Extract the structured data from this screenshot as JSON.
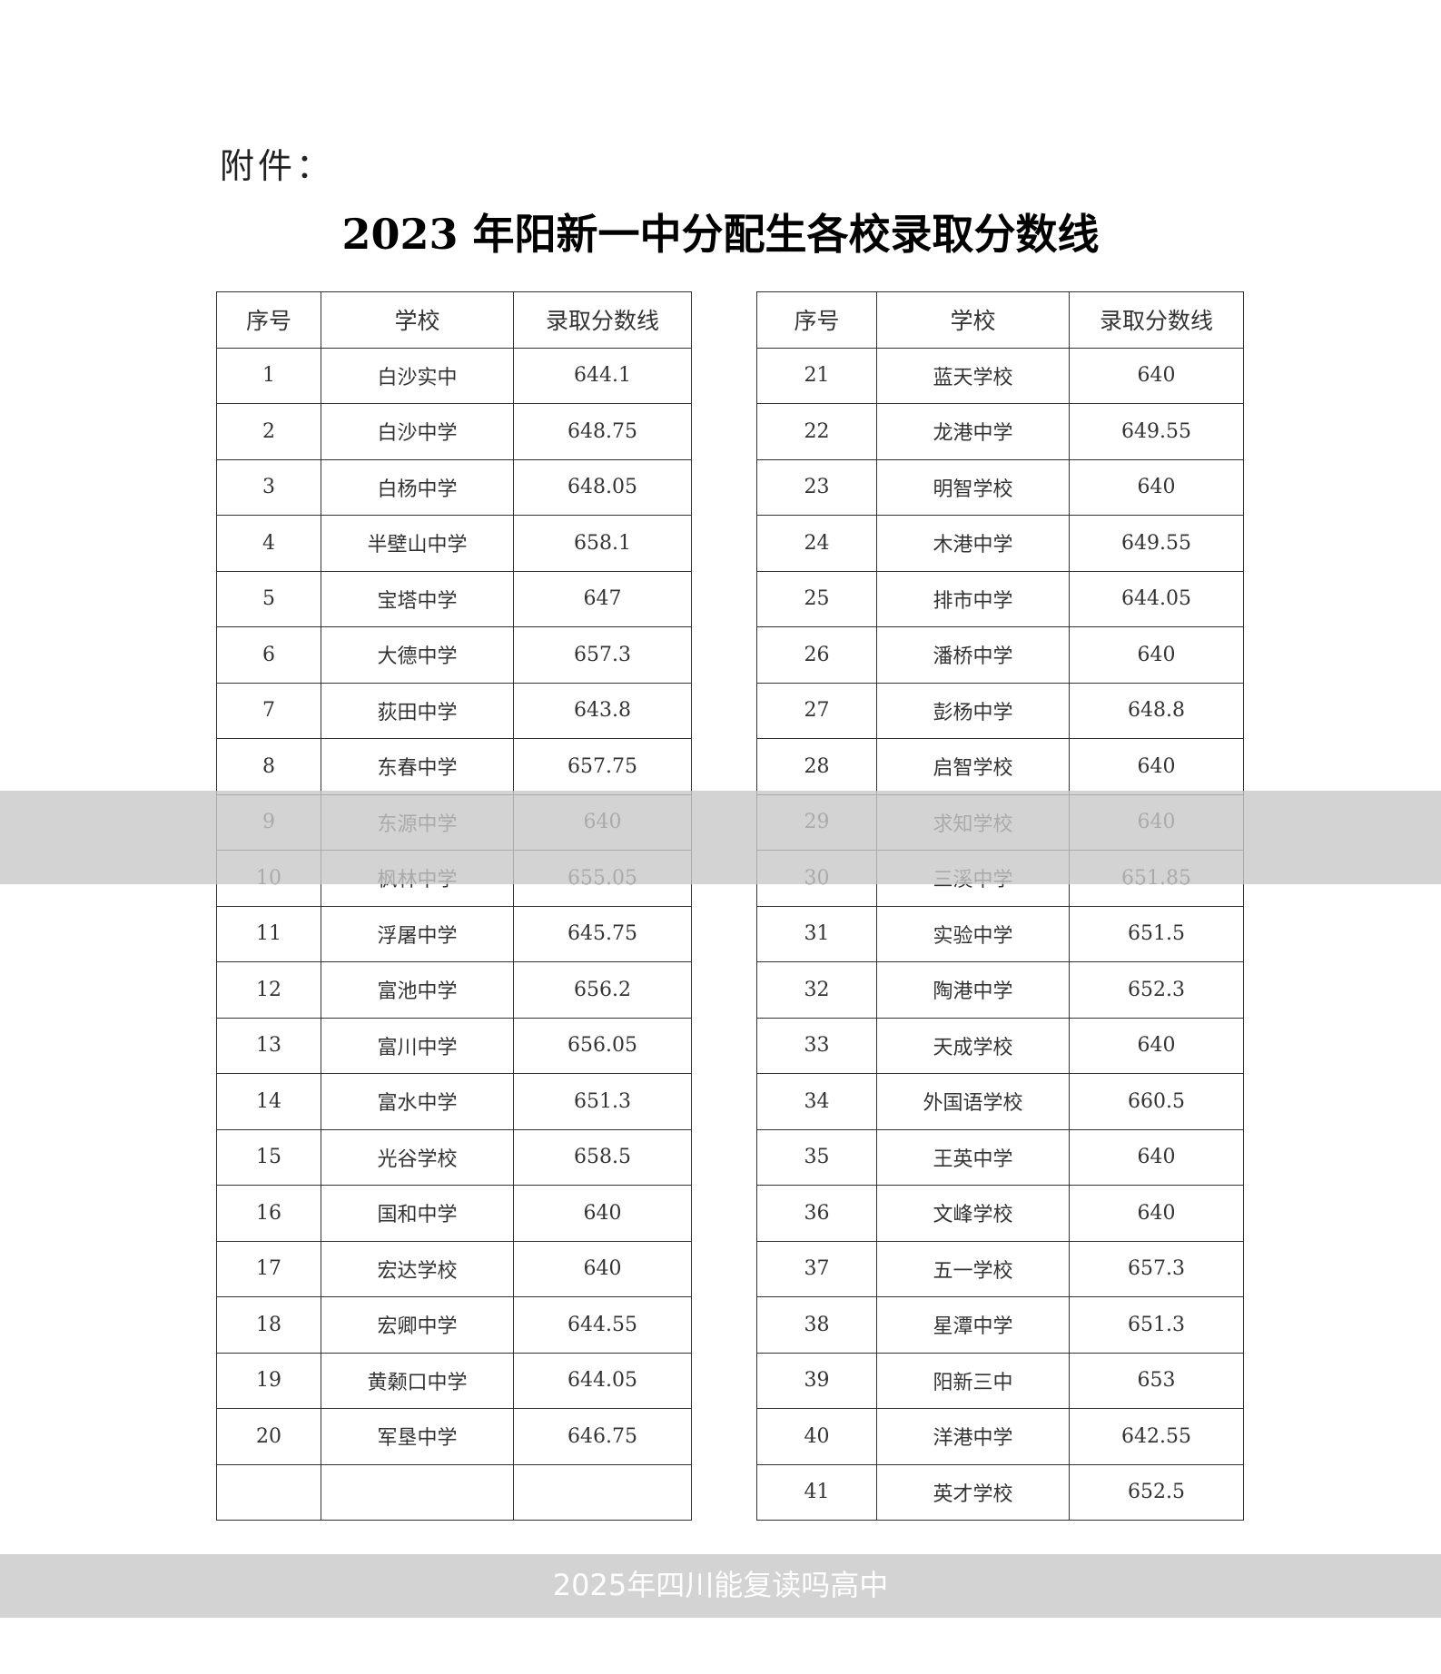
{
  "attachment_label": "附件：",
  "title": "2023 年阳新一中分配生各校录取分数线",
  "headers": [
    "序号",
    "学校",
    "录取分数线"
  ],
  "left_rows": [
    [
      "1",
      "白沙实中",
      "644.1"
    ],
    [
      "2",
      "白沙中学",
      "648.75"
    ],
    [
      "3",
      "白杨中学",
      "648.05"
    ],
    [
      "4",
      "半壁山中学",
      "658.1"
    ],
    [
      "5",
      "宝塔中学",
      "647"
    ],
    [
      "6",
      "大德中学",
      "657.3"
    ],
    [
      "7",
      "荻田中学",
      "643.8"
    ],
    [
      "8",
      "东春中学",
      "657.75"
    ],
    [
      "9",
      "东源中学",
      "640"
    ],
    [
      "10",
      "枫林中学",
      "655.05"
    ],
    [
      "11",
      "浮屠中学",
      "645.75"
    ],
    [
      "12",
      "富池中学",
      "656.2"
    ],
    [
      "13",
      "富川中学",
      "656.05"
    ],
    [
      "14",
      "富水中学",
      "651.3"
    ],
    [
      "15",
      "光谷学校",
      "658.5"
    ],
    [
      "16",
      "国和中学",
      "640"
    ],
    [
      "17",
      "宏达学校",
      "640"
    ],
    [
      "18",
      "宏卿中学",
      "644.55"
    ],
    [
      "19",
      "黄颡口中学",
      "644.05"
    ],
    [
      "20",
      "军垦中学",
      "646.75"
    ],
    [
      "",
      "",
      ""
    ]
  ],
  "right_rows": [
    [
      "21",
      "蓝天学校",
      "640"
    ],
    [
      "22",
      "龙港中学",
      "649.55"
    ],
    [
      "23",
      "明智学校",
      "640"
    ],
    [
      "24",
      "木港中学",
      "649.55"
    ],
    [
      "25",
      "排市中学",
      "644.05"
    ],
    [
      "26",
      "潘桥中学",
      "640"
    ],
    [
      "27",
      "彭杨中学",
      "648.8"
    ],
    [
      "28",
      "启智学校",
      "640"
    ],
    [
      "29",
      "求知学校",
      "640"
    ],
    [
      "30",
      "三溪中学",
      "651.85"
    ],
    [
      "31",
      "实验中学",
      "651.5"
    ],
    [
      "32",
      "陶港中学",
      "652.3"
    ],
    [
      "33",
      "天成学校",
      "640"
    ],
    [
      "34",
      "外国语学校",
      "660.5"
    ],
    [
      "35",
      "王英中学",
      "640"
    ],
    [
      "36",
      "文峰学校",
      "640"
    ],
    [
      "37",
      "五一学校",
      "657.3"
    ],
    [
      "38",
      "星潭中学",
      "651.3"
    ],
    [
      "39",
      "阳新三中",
      "653"
    ],
    [
      "40",
      "洋港中学",
      "642.55"
    ],
    [
      "41",
      "英才学校",
      "652.5"
    ]
  ],
  "watermark": "2025年四川能复读吗高中"
}
